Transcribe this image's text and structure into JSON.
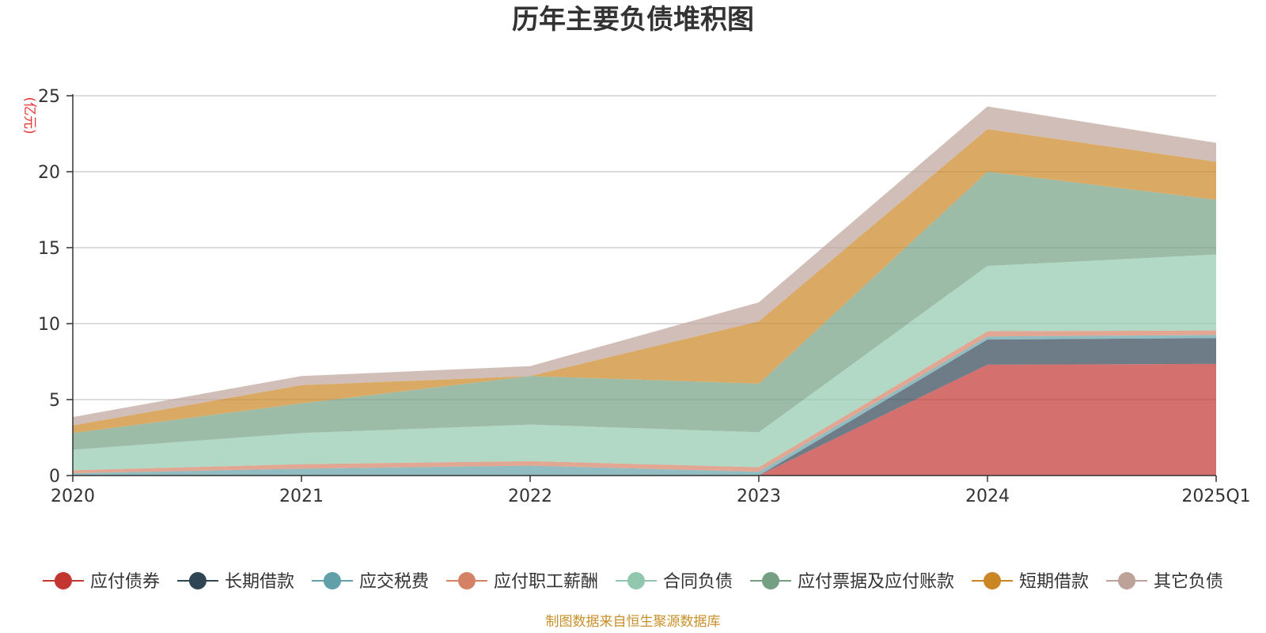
{
  "chart_data": {
    "type": "area",
    "stacked": true,
    "title": "历年主要负债堆积图",
    "y_unit_label": "(亿元)",
    "categories": [
      "2020",
      "2021",
      "2022",
      "2023",
      "2024",
      "2025Q1"
    ],
    "ylim": [
      0,
      25
    ],
    "yticks": [
      0,
      5,
      10,
      15,
      20,
      25
    ],
    "grid": true,
    "legend_position": "bottom",
    "series": [
      {
        "name": "应付债券",
        "color": "#c23531",
        "values": [
          0,
          0,
          0,
          0,
          7.3,
          7.35
        ]
      },
      {
        "name": "长期借款",
        "color": "#2f4554",
        "values": [
          0,
          0,
          0,
          0,
          1.65,
          1.7
        ]
      },
      {
        "name": "应交税费",
        "color": "#61a0a8",
        "values": [
          0.15,
          0.45,
          0.65,
          0.25,
          0.2,
          0.2
        ]
      },
      {
        "name": "应付职工薪酬",
        "color": "#d48265",
        "values": [
          0.2,
          0.3,
          0.3,
          0.3,
          0.35,
          0.3
        ]
      },
      {
        "name": "合同负债",
        "color": "#91c7ae",
        "values": [
          1.35,
          2.05,
          2.4,
          2.3,
          4.3,
          5.0
        ]
      },
      {
        "name": "应付票据及应付账款",
        "color": "#749f83",
        "values": [
          1.1,
          1.95,
          3.2,
          3.2,
          6.2,
          3.6
        ]
      },
      {
        "name": "短期借款",
        "color": "#ca8622",
        "values": [
          0.5,
          1.2,
          0,
          4.1,
          2.8,
          2.5
        ]
      },
      {
        "name": "其它负债",
        "color": "#bda29a",
        "values": [
          0.55,
          0.6,
          0.65,
          1.25,
          1.5,
          1.25
        ]
      }
    ]
  },
  "footer": {
    "source": "制图数据来自恒生聚源数据库",
    "source_color": "#c8902a"
  }
}
